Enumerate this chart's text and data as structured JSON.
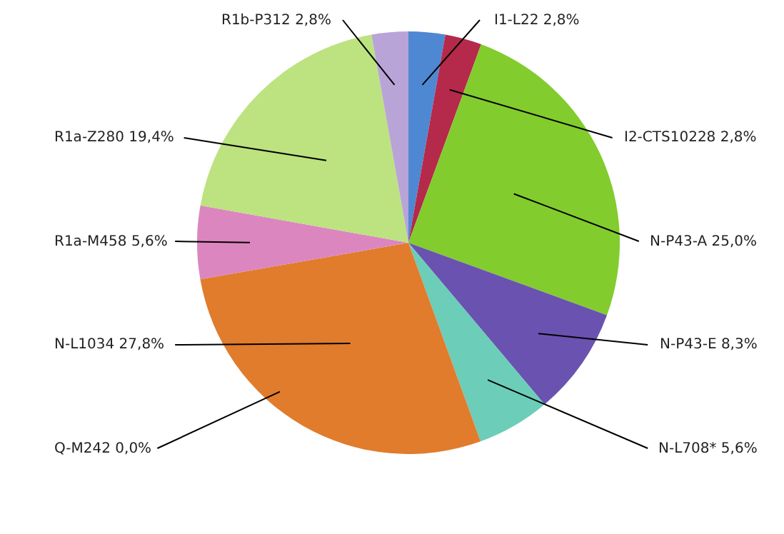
{
  "chart_data": {
    "type": "pie",
    "categories": [
      "I1-L22",
      "I2-CTS10228",
      "N-P43-A",
      "N-P43-E",
      "N-L708*",
      "Q-M242",
      "N-L1034",
      "R1a-M458",
      "R1a-Z280",
      "R1b-P312"
    ],
    "values": [
      2.8,
      2.8,
      25.0,
      8.3,
      5.6,
      0.0,
      27.8,
      5.6,
      19.4,
      2.8
    ],
    "value_labels": [
      "2,8%",
      "2,8%",
      "25,0%",
      "8,3%",
      "5,6%",
      "0,0%",
      "27,8%",
      "5,6%",
      "19,4%",
      "2,8%"
    ],
    "colors": [
      "#4f88d2",
      "#b5294a",
      "#82cc2e",
      "#6a52b0",
      "#6ccdb8",
      "#3a8fd0",
      "#e07c2c",
      "#dc86bf",
      "#bde280",
      "#b9a4d8"
    ],
    "legend": false
  }
}
